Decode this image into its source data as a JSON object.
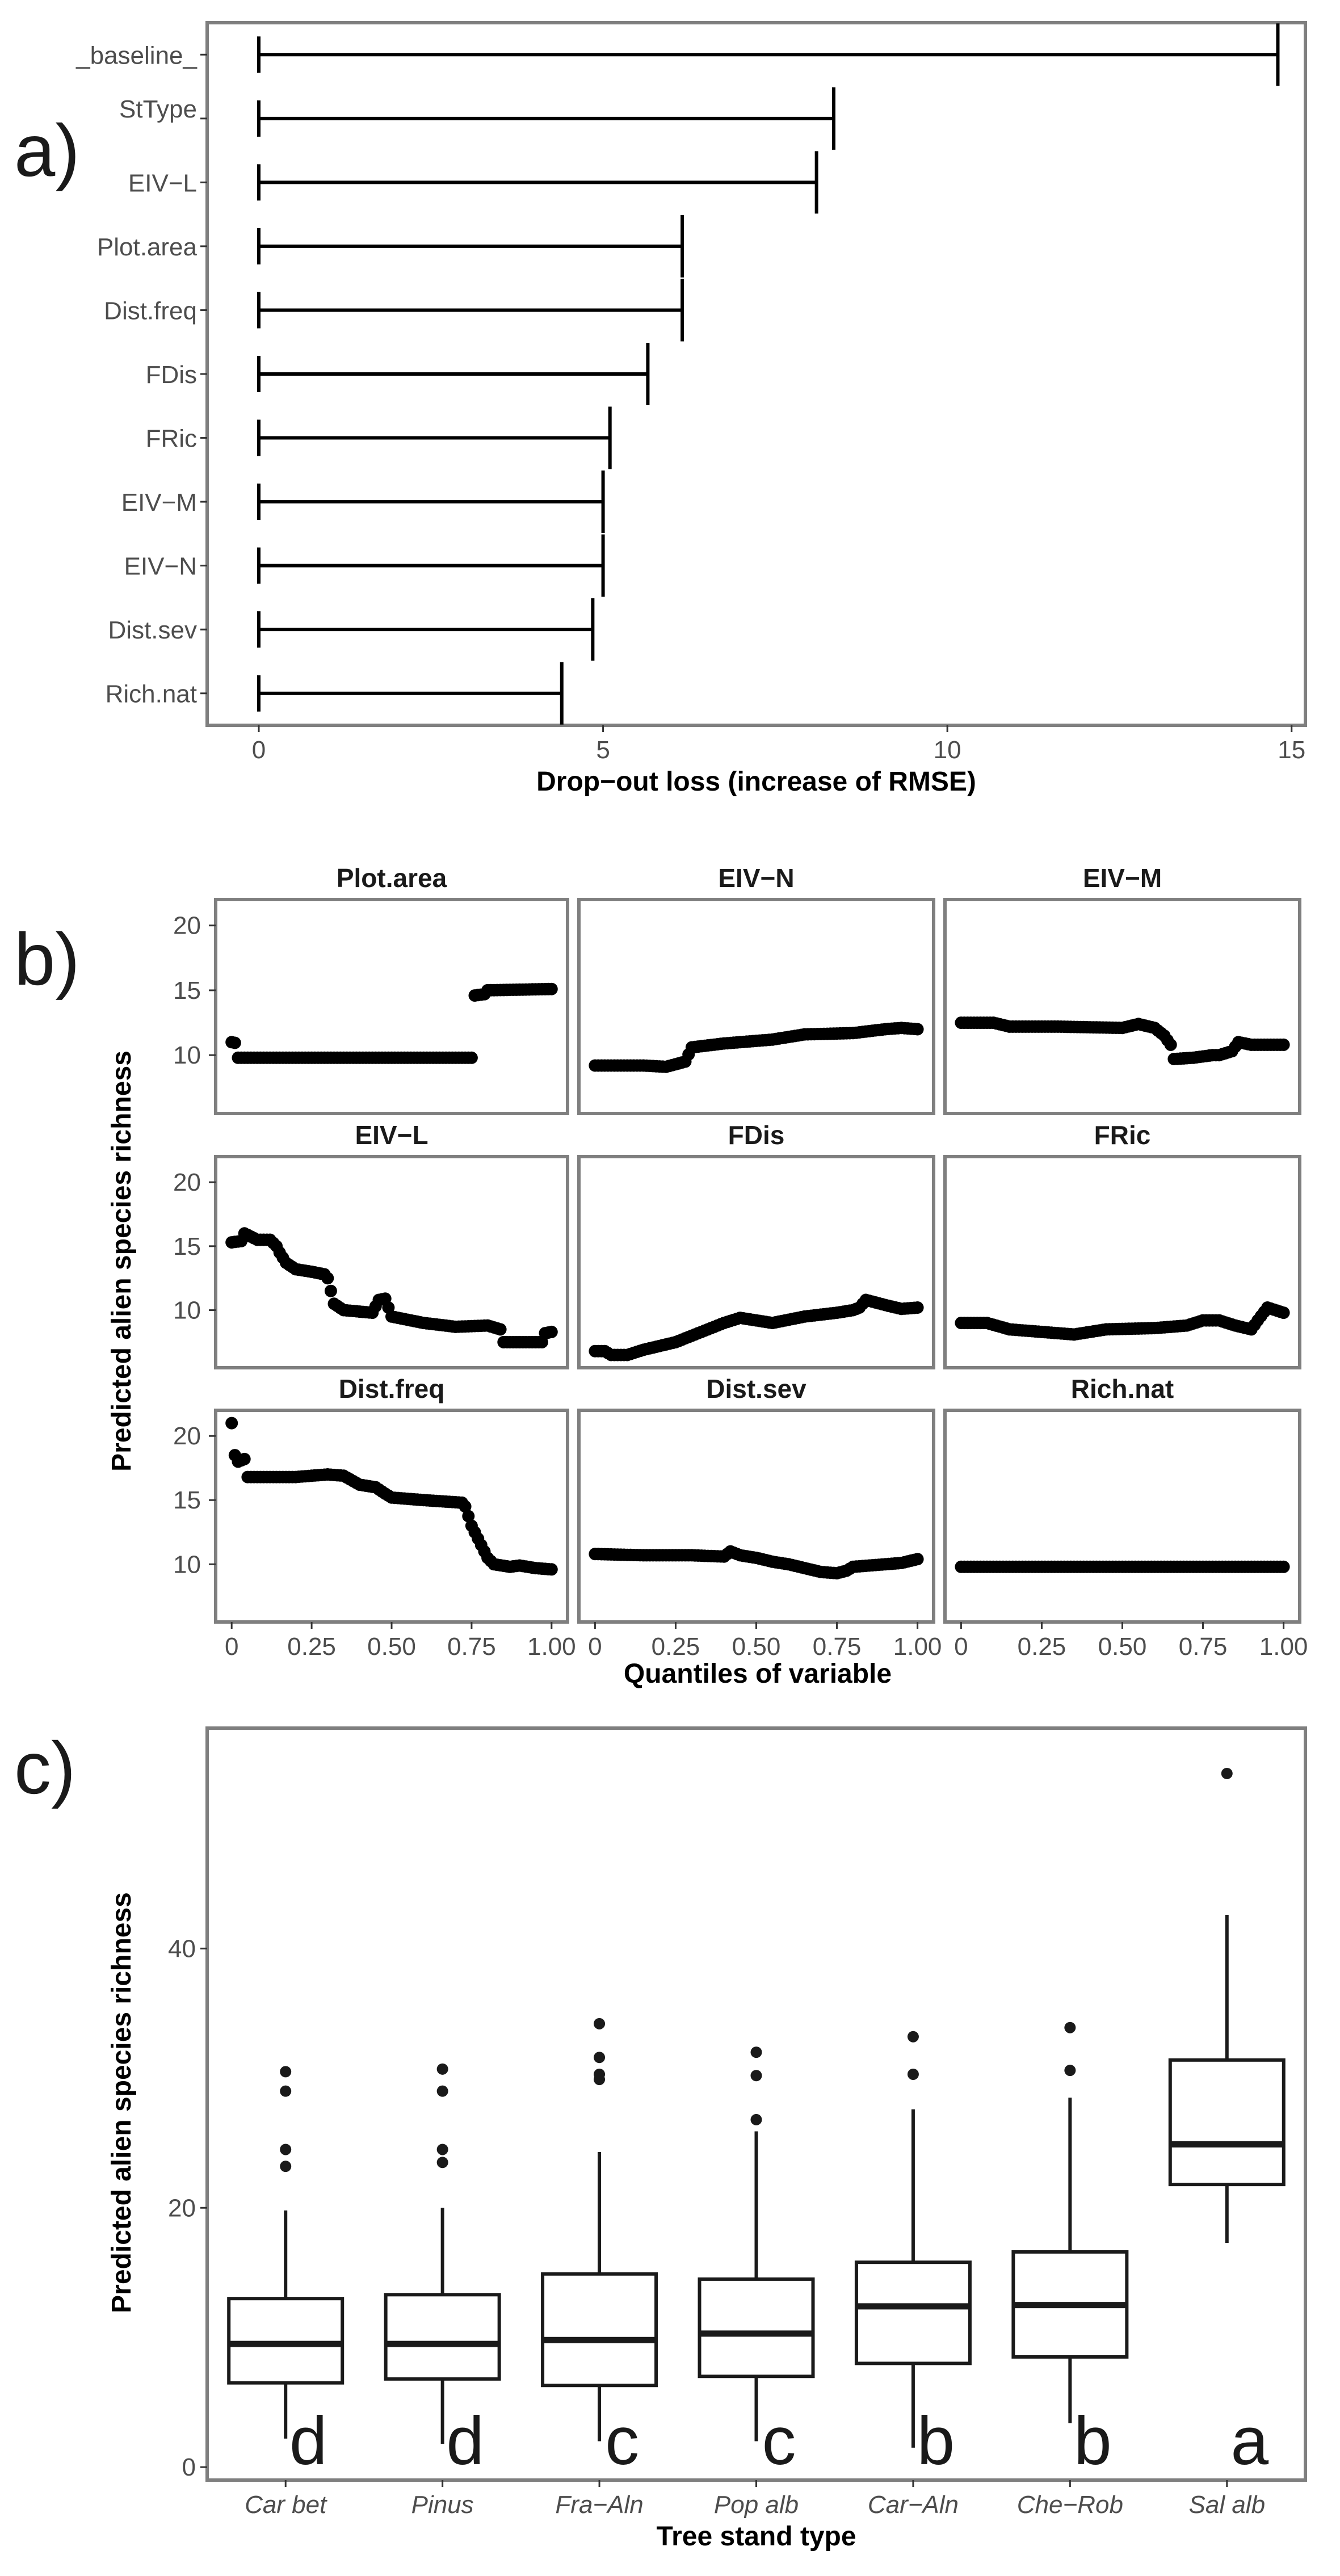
{
  "panels": {
    "a": "a)",
    "b": "b)",
    "c": "c)"
  },
  "chart_data": [
    {
      "type": "bar",
      "orientation": "horizontal",
      "variant": "drop-out-loss",
      "categories": [
        "_baseline_",
        "StType",
        "EIV−L",
        "Plot.area",
        "Dist.freq",
        "FDis",
        "FRic",
        "EIV−M",
        "EIV−N",
        "Dist.sev",
        "Rich.nat"
      ],
      "values": [
        14.8,
        8.35,
        8.1,
        6.15,
        6.15,
        5.65,
        5.1,
        5.0,
        5.0,
        4.85,
        4.4
      ],
      "xlabel": "Drop−out loss (increase of RMSE)",
      "xlim": [
        -0.75,
        15.2
      ],
      "xticks": [
        0,
        5,
        10,
        15
      ],
      "xtick_labels": [
        "0",
        "5",
        "10",
        "15"
      ]
    },
    {
      "type": "scatter",
      "layout": "facet-grid-3x3",
      "ylabel": "Predicted alien species richness",
      "xlabel": "Quantiles of variable",
      "xlim": [
        -0.05,
        1.05
      ],
      "ylim": [
        5.5,
        22
      ],
      "xticks": [
        0,
        0.25,
        0.5,
        0.75,
        1
      ],
      "xtick_labels": [
        "0",
        "0.25",
        "0.50",
        "0.75",
        "1.00"
      ],
      "yticks": [
        10,
        15,
        20
      ],
      "ytick_labels": [
        "10",
        "15",
        "20"
      ],
      "facets": [
        {
          "title": "Plot.area",
          "profile": [
            [
              0,
              11.0
            ],
            [
              0.01,
              10.95
            ],
            [
              0.02,
              9.8
            ],
            [
              0.75,
              9.8
            ],
            [
              0.76,
              14.6
            ],
            [
              0.79,
              14.7
            ],
            [
              0.8,
              15.0
            ],
            [
              1.0,
              15.1
            ]
          ]
        },
        {
          "title": "EIV−N",
          "profile": [
            [
              0,
              9.2
            ],
            [
              0.15,
              9.2
            ],
            [
              0.22,
              9.1
            ],
            [
              0.28,
              9.5
            ],
            [
              0.3,
              10.6
            ],
            [
              0.4,
              10.9
            ],
            [
              0.55,
              11.2
            ],
            [
              0.65,
              11.6
            ],
            [
              0.8,
              11.7
            ],
            [
              0.9,
              12.0
            ],
            [
              0.95,
              12.1
            ],
            [
              1.0,
              12.0
            ]
          ]
        },
        {
          "title": "EIV−M",
          "profile": [
            [
              0,
              12.5
            ],
            [
              0.1,
              12.5
            ],
            [
              0.15,
              12.2
            ],
            [
              0.3,
              12.2
            ],
            [
              0.5,
              12.1
            ],
            [
              0.55,
              12.4
            ],
            [
              0.6,
              12.1
            ],
            [
              0.63,
              11.5
            ],
            [
              0.65,
              10.8
            ],
            [
              0.66,
              9.7
            ],
            [
              0.72,
              9.8
            ],
            [
              0.78,
              10.0
            ],
            [
              0.8,
              10.0
            ],
            [
              0.84,
              10.3
            ],
            [
              0.86,
              11.0
            ],
            [
              0.9,
              10.8
            ],
            [
              1.0,
              10.8
            ]
          ]
        },
        {
          "title": "EIV−L",
          "profile": [
            [
              0,
              15.3
            ],
            [
              0.03,
              15.4
            ],
            [
              0.04,
              16.0
            ],
            [
              0.08,
              15.5
            ],
            [
              0.12,
              15.5
            ],
            [
              0.14,
              15.0
            ],
            [
              0.15,
              14.5
            ],
            [
              0.17,
              13.7
            ],
            [
              0.2,
              13.2
            ],
            [
              0.25,
              13.0
            ],
            [
              0.29,
              12.8
            ],
            [
              0.3,
              12.5
            ],
            [
              0.32,
              10.5
            ],
            [
              0.35,
              10.0
            ],
            [
              0.44,
              9.8
            ],
            [
              0.46,
              10.8
            ],
            [
              0.48,
              10.9
            ],
            [
              0.5,
              9.5
            ],
            [
              0.6,
              9.0
            ],
            [
              0.7,
              8.7
            ],
            [
              0.8,
              8.8
            ],
            [
              0.84,
              8.5
            ],
            [
              0.85,
              7.5
            ],
            [
              0.97,
              7.5
            ],
            [
              0.98,
              8.2
            ],
            [
              1.0,
              8.3
            ]
          ]
        },
        {
          "title": "FDis",
          "profile": [
            [
              0,
              6.8
            ],
            [
              0.03,
              6.8
            ],
            [
              0.05,
              6.5
            ],
            [
              0.1,
              6.5
            ],
            [
              0.15,
              6.9
            ],
            [
              0.25,
              7.5
            ],
            [
              0.35,
              8.5
            ],
            [
              0.4,
              9.0
            ],
            [
              0.45,
              9.4
            ],
            [
              0.55,
              9.0
            ],
            [
              0.65,
              9.5
            ],
            [
              0.75,
              9.8
            ],
            [
              0.8,
              10.0
            ],
            [
              0.82,
              10.2
            ],
            [
              0.84,
              10.8
            ],
            [
              0.9,
              10.4
            ],
            [
              0.95,
              10.1
            ],
            [
              1.0,
              10.2
            ]
          ]
        },
        {
          "title": "FRic",
          "profile": [
            [
              0,
              9.0
            ],
            [
              0.08,
              9.0
            ],
            [
              0.15,
              8.5
            ],
            [
              0.25,
              8.3
            ],
            [
              0.35,
              8.1
            ],
            [
              0.45,
              8.5
            ],
            [
              0.6,
              8.6
            ],
            [
              0.7,
              8.8
            ],
            [
              0.75,
              9.2
            ],
            [
              0.8,
              9.2
            ],
            [
              0.85,
              8.8
            ],
            [
              0.9,
              8.5
            ],
            [
              0.92,
              9.2
            ],
            [
              0.95,
              10.2
            ],
            [
              1.0,
              9.8
            ]
          ]
        },
        {
          "title": "Dist.freq",
          "profile": [
            [
              0,
              21.0
            ],
            [
              0.01,
              18.5
            ],
            [
              0.02,
              18.0
            ],
            [
              0.04,
              18.2
            ],
            [
              0.05,
              16.8
            ],
            [
              0.2,
              16.8
            ],
            [
              0.3,
              17.0
            ],
            [
              0.35,
              16.9
            ],
            [
              0.4,
              16.2
            ],
            [
              0.45,
              16.0
            ],
            [
              0.48,
              15.5
            ],
            [
              0.5,
              15.2
            ],
            [
              0.6,
              15.0
            ],
            [
              0.72,
              14.8
            ],
            [
              0.73,
              14.5
            ],
            [
              0.75,
              13.0
            ],
            [
              0.77,
              12.0
            ],
            [
              0.78,
              11.5
            ],
            [
              0.8,
              10.5
            ],
            [
              0.82,
              10.0
            ],
            [
              0.87,
              9.8
            ],
            [
              0.9,
              9.9
            ],
            [
              0.95,
              9.7
            ],
            [
              1.0,
              9.6
            ]
          ]
        },
        {
          "title": "Dist.sev",
          "profile": [
            [
              0,
              10.8
            ],
            [
              0.15,
              10.7
            ],
            [
              0.3,
              10.7
            ],
            [
              0.4,
              10.6
            ],
            [
              0.42,
              11.0
            ],
            [
              0.45,
              10.7
            ],
            [
              0.5,
              10.5
            ],
            [
              0.55,
              10.2
            ],
            [
              0.6,
              10.0
            ],
            [
              0.65,
              9.7
            ],
            [
              0.7,
              9.4
            ],
            [
              0.75,
              9.3
            ],
            [
              0.78,
              9.5
            ],
            [
              0.8,
              9.8
            ],
            [
              0.85,
              9.9
            ],
            [
              0.9,
              10.0
            ],
            [
              0.95,
              10.1
            ],
            [
              1.0,
              10.4
            ]
          ]
        },
        {
          "title": "Rich.nat",
          "profile": [
            [
              0,
              9.8
            ],
            [
              1.0,
              9.8
            ]
          ]
        }
      ]
    },
    {
      "type": "box",
      "ylabel": "Predicted alien species richness",
      "xlabel": "Tree stand type",
      "ylim": [
        -1,
        57
      ],
      "yticks": [
        0,
        20,
        40
      ],
      "ytick_labels": [
        "0",
        "20",
        "40"
      ],
      "categories": [
        "Car bet",
        "Pinus",
        "Fra−Aln",
        "Pop alb",
        "Car−Aln",
        "Che−Rob",
        "Sal alb"
      ],
      "letters": [
        "d",
        "d",
        "c",
        "c",
        "b",
        "b",
        "a"
      ],
      "boxes": [
        {
          "min": 2.2,
          "q1": 6.5,
          "median": 9.5,
          "q3": 13.0,
          "max": 19.8,
          "outliers": [
            23.2,
            24.5,
            29.0,
            30.5
          ]
        },
        {
          "min": 1.8,
          "q1": 6.8,
          "median": 9.5,
          "q3": 13.3,
          "max": 20.0,
          "outliers": [
            23.5,
            24.5,
            29.0,
            30.7
          ]
        },
        {
          "min": 2.0,
          "q1": 6.3,
          "median": 9.8,
          "q3": 14.9,
          "max": 24.3,
          "outliers": [
            29.9,
            30.3,
            31.6,
            34.2
          ]
        },
        {
          "min": 2.0,
          "q1": 7.0,
          "median": 10.3,
          "q3": 14.5,
          "max": 25.9,
          "outliers": [
            26.8,
            30.2,
            32.0
          ]
        },
        {
          "min": 1.5,
          "q1": 8.0,
          "median": 12.4,
          "q3": 15.8,
          "max": 27.6,
          "outliers": [
            30.3,
            33.2
          ]
        },
        {
          "min": 3.4,
          "q1": 8.5,
          "median": 12.5,
          "q3": 16.6,
          "max": 28.5,
          "outliers": [
            30.6,
            33.9
          ]
        },
        {
          "min": 17.3,
          "q1": 21.8,
          "median": 24.9,
          "q3": 31.4,
          "max": 42.6,
          "outliers": [
            53.5
          ]
        }
      ]
    }
  ]
}
